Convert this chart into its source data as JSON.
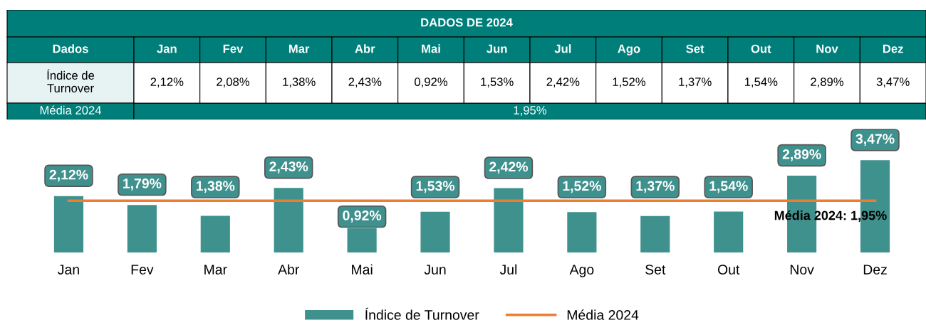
{
  "chart_data": [
    {
      "type": "other",
      "title": "DADOS DE 2024",
      "categories": [
        "Jan",
        "Fev",
        "Mar",
        "Abr",
        "Mai",
        "Jun",
        "Jul",
        "Ago",
        "Set",
        "Out",
        "Nov",
        "Dez"
      ],
      "value_labels": [
        "2,12%",
        "2,08%",
        "1,38%",
        "2,43%",
        "0,92%",
        "1,53%",
        "2,42%",
        "1,52%",
        "1,37%",
        "1,54%",
        "2,89%",
        "3,47%"
      ],
      "annotations": [
        "Dados",
        "Índice de\nTurnover",
        "Média 2024",
        "1,95%"
      ]
    },
    {
      "type": "bar",
      "categories": [
        "Jan",
        "Fev",
        "Mar",
        "Abr",
        "Mai",
        "Jun",
        "Jul",
        "Ago",
        "Set",
        "Out",
        "Nov",
        "Dez"
      ],
      "series": [
        {
          "name": "Índice de Turnover",
          "color": "#3f918d",
          "values": [
            2.12,
            1.79,
            1.38,
            2.43,
            0.92,
            1.53,
            2.42,
            1.52,
            1.37,
            1.54,
            2.89,
            3.47
          ],
          "value_labels": [
            "2,12%",
            "1,79%",
            "1,38%",
            "2,43%",
            "0,92%",
            "1,53%",
            "2,42%",
            "1,52%",
            "1,37%",
            "1,54%",
            "2,89%",
            "3,47%"
          ]
        },
        {
          "name": "Média 2024",
          "type": "line",
          "color": "#ed7d31",
          "values": [
            1.95,
            1.95,
            1.95,
            1.95,
            1.95,
            1.95,
            1.95,
            1.95,
            1.95,
            1.95,
            1.95,
            1.95
          ]
        }
      ],
      "annotations": [
        {
          "text": "Média 2024: 1,95%",
          "x": "Dez",
          "y": 1.95
        }
      ],
      "legend": "bottom",
      "grid": false,
      "marker": "none",
      "line_style": "solid"
    }
  ]
}
